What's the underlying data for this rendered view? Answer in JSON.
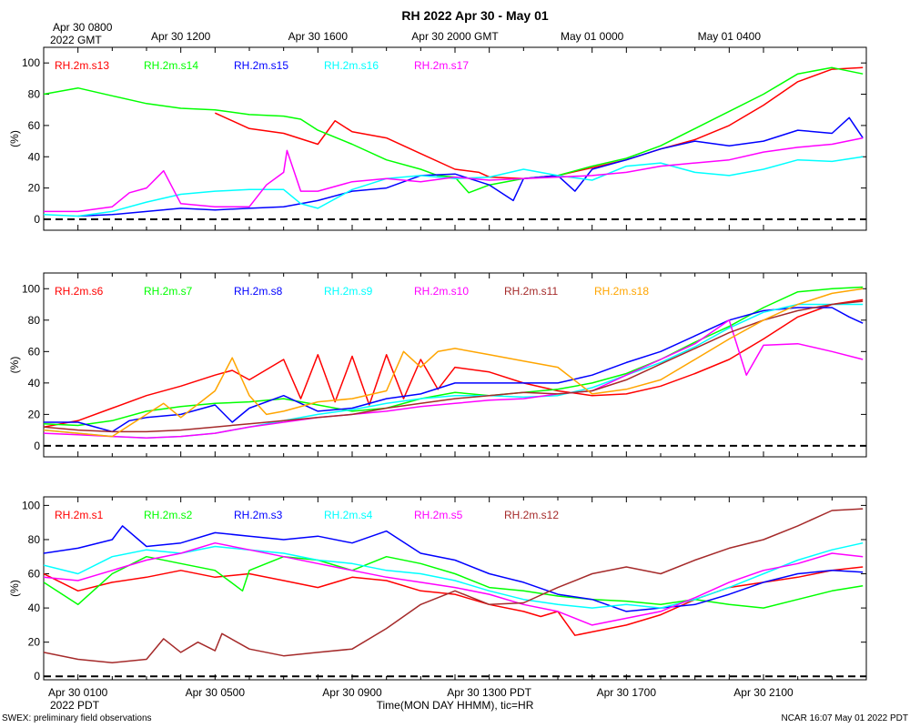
{
  "figure": {
    "title": "RH 2022 Apr 30 - May 01",
    "footer_left": "SWEX: preliminary field observations",
    "footer_right": "NCAR 16:07 May 01 2022 PDT",
    "top_axis_first_line1": "Apr 30 0800",
    "top_axis_first_line2": "2022 GMT",
    "bottom_axis_first_line2": "2022 PDT",
    "xlabel": "Time(MON DAY HHMM), tic=HR",
    "top_axis_ticks": [
      {
        "hour": 0,
        "label": ""
      },
      {
        "hour": 4,
        "label": "Apr 30 1200"
      },
      {
        "hour": 8,
        "label": "Apr 30 1600"
      },
      {
        "hour": 12,
        "label": "Apr 30 2000 GMT"
      },
      {
        "hour": 16,
        "label": "May 01 0000"
      },
      {
        "hour": 20,
        "label": "May 01 0400"
      }
    ],
    "bottom_axis_ticks": [
      {
        "hour": 1,
        "label": "Apr 30 0100"
      },
      {
        "hour": 5,
        "label": "Apr 30 0500"
      },
      {
        "hour": 9,
        "label": "Apr 30 0900"
      },
      {
        "hour": 13,
        "label": "Apr 30 1300 PDT"
      },
      {
        "hour": 17,
        "label": "Apr 30 1700"
      },
      {
        "hour": 21,
        "label": "Apr 30 2100"
      }
    ]
  },
  "chart_data": [
    {
      "type": "line",
      "name": "panel-top",
      "ylabel": "(%)",
      "ylim": [
        -7,
        110
      ],
      "yticks": [
        0,
        20,
        40,
        60,
        80,
        100
      ],
      "xlim": [
        0,
        24
      ],
      "reference_line": 0,
      "series": [
        {
          "name": "RH.2m.s13",
          "color": "#ff0000",
          "x": [
            5,
            6,
            7,
            8,
            8.5,
            9,
            10,
            11,
            12,
            12.7,
            13,
            14,
            15,
            16,
            17,
            18,
            19,
            20,
            21,
            22,
            23,
            23.9
          ],
          "y": [
            68,
            58,
            55,
            48,
            63,
            56,
            52,
            42,
            32,
            30,
            27,
            26,
            28,
            33,
            38,
            45,
            51,
            60,
            73,
            88,
            96,
            97
          ]
        },
        {
          "name": "RH.2m.s14",
          "color": "#00ff00",
          "x": [
            0,
            1,
            2,
            3,
            4,
            5,
            6,
            7,
            7.5,
            8,
            9,
            10,
            11,
            11.5,
            12,
            12.4,
            13,
            14,
            15,
            16,
            17,
            18,
            19,
            20,
            21,
            22,
            23,
            23.9
          ],
          "y": [
            80,
            84,
            79,
            74,
            71,
            70,
            67,
            66,
            64,
            57,
            48,
            38,
            32,
            28,
            27,
            17,
            22,
            26,
            28,
            34,
            39,
            47,
            58,
            69,
            80,
            93,
            97,
            93
          ]
        },
        {
          "name": "RH.2m.s15",
          "color": "#0000ff",
          "x": [
            1,
            2,
            3,
            4,
            5,
            6,
            7,
            8,
            9,
            10,
            11,
            12,
            13,
            13.7,
            14,
            15,
            15.5,
            16,
            17,
            18,
            19,
            20,
            21,
            22,
            23,
            23.5,
            23.9
          ],
          "y": [
            2,
            3,
            5,
            7,
            6,
            7,
            8,
            12,
            18,
            20,
            28,
            29,
            22,
            12,
            26,
            28,
            18,
            32,
            38,
            45,
            50,
            47,
            50,
            57,
            55,
            65,
            52
          ]
        },
        {
          "name": "RH.2m.s16",
          "color": "#00ffff",
          "x": [
            0,
            1,
            2,
            3,
            4,
            5,
            6,
            7,
            7.5,
            8,
            9,
            10,
            11,
            12,
            13,
            14,
            15,
            16,
            17,
            18,
            19,
            20,
            21,
            22,
            23,
            23.9
          ],
          "y": [
            3,
            2,
            5,
            11,
            16,
            18,
            19,
            19,
            10,
            7,
            19,
            26,
            28,
            26,
            27,
            32,
            28,
            25,
            34,
            36,
            30,
            28,
            32,
            38,
            37,
            40
          ]
        },
        {
          "name": "RH.2m.s17",
          "color": "#ff00ff",
          "x": [
            0,
            1,
            2,
            2.5,
            3,
            3.5,
            4,
            5,
            6,
            6.5,
            7,
            7.1,
            7.5,
            8,
            9,
            10,
            11,
            12,
            13,
            14,
            15,
            16,
            17,
            18,
            19,
            20,
            21,
            22,
            23,
            23.9
          ],
          "y": [
            5,
            5,
            8,
            17,
            20,
            31,
            10,
            8,
            8,
            22,
            30,
            44,
            18,
            18,
            24,
            26,
            24,
            27,
            25,
            26,
            27,
            28,
            30,
            34,
            36,
            38,
            43,
            46,
            48,
            52
          ]
        }
      ]
    },
    {
      "type": "line",
      "name": "panel-middle",
      "ylabel": "(%)",
      "ylim": [
        -7,
        110
      ],
      "yticks": [
        0,
        20,
        40,
        60,
        80,
        100
      ],
      "xlim": [
        0,
        24
      ],
      "reference_line": 0,
      "series": [
        {
          "name": "RH.2m.s6",
          "color": "#ff0000",
          "x": [
            0,
            1,
            2,
            3,
            4,
            5,
            5.5,
            6,
            7,
            7.5,
            8,
            8.5,
            9,
            9.5,
            10,
            10.5,
            11,
            11.5,
            12,
            13,
            14,
            15,
            16,
            17,
            18,
            19,
            20,
            21,
            22,
            23,
            23.9
          ],
          "y": [
            12,
            16,
            24,
            32,
            38,
            45,
            48,
            42,
            55,
            30,
            58,
            28,
            57,
            26,
            58,
            30,
            55,
            36,
            50,
            47,
            40,
            35,
            32,
            33,
            38,
            46,
            55,
            68,
            82,
            90,
            93
          ]
        },
        {
          "name": "RH.2m.s7",
          "color": "#00ff00",
          "x": [
            0,
            1,
            2,
            3,
            4,
            5,
            6,
            7,
            8,
            9,
            10,
            11,
            12,
            13,
            14,
            15,
            16,
            17,
            18,
            19,
            20,
            21,
            22,
            23,
            23.9
          ],
          "y": [
            14,
            13,
            16,
            22,
            25,
            27,
            28,
            30,
            26,
            22,
            24,
            30,
            34,
            32,
            34,
            36,
            40,
            46,
            55,
            66,
            76,
            88,
            98,
            100,
            101
          ]
        },
        {
          "name": "RH.2m.s8",
          "color": "#0000ff",
          "x": [
            0,
            1,
            2,
            2.5,
            3,
            4,
            5,
            5.5,
            6,
            7,
            8,
            9,
            10,
            11,
            12,
            13,
            14,
            15,
            16,
            17,
            18,
            19,
            20,
            21,
            22,
            23,
            23.5,
            23.9
          ],
          "y": [
            15,
            15,
            9,
            16,
            18,
            20,
            26,
            15,
            24,
            32,
            22,
            24,
            30,
            33,
            40,
            40,
            40,
            40,
            45,
            53,
            60,
            70,
            80,
            86,
            88,
            88,
            82,
            78
          ]
        },
        {
          "name": "RH.2m.s9",
          "color": "#00ffff",
          "x": [
            0,
            1,
            2,
            3,
            4,
            5,
            6,
            7,
            8,
            9,
            10,
            11,
            12,
            13,
            14,
            15,
            16,
            17,
            18,
            19,
            20,
            21,
            22,
            23,
            23.9
          ],
          "y": [
            10,
            8,
            6,
            5,
            6,
            8,
            12,
            16,
            20,
            23,
            27,
            30,
            32,
            32,
            31,
            32,
            37,
            45,
            53,
            63,
            75,
            85,
            90,
            90,
            90
          ]
        },
        {
          "name": "RH.2m.s10",
          "color": "#ff00ff",
          "x": [
            0,
            1,
            2,
            3,
            4,
            5,
            6,
            7,
            8,
            9,
            10,
            11,
            12,
            13,
            14,
            15,
            16,
            17,
            18,
            19,
            20,
            20.5,
            21,
            22,
            23,
            23.9
          ],
          "y": [
            8,
            7,
            6,
            5,
            6,
            8,
            12,
            15,
            18,
            20,
            22,
            25,
            27,
            29,
            30,
            33,
            35,
            45,
            55,
            65,
            80,
            45,
            64,
            65,
            60,
            55
          ]
        },
        {
          "name": "RH.2m.s11",
          "color": "#a52a2a",
          "x": [
            0,
            1,
            2,
            3,
            4,
            5,
            6,
            7,
            8,
            9,
            10,
            11,
            12,
            13,
            14,
            15,
            16,
            17,
            18,
            19,
            20,
            21,
            22,
            23,
            23.9
          ],
          "y": [
            12,
            10,
            9,
            9,
            10,
            12,
            14,
            16,
            18,
            20,
            24,
            27,
            30,
            32,
            34,
            33,
            35,
            42,
            52,
            62,
            72,
            80,
            86,
            90,
            92
          ]
        },
        {
          "name": "RH.2m.s18",
          "color": "#ffa500",
          "x": [
            0,
            1,
            2,
            3,
            3.5,
            4,
            5,
            5.5,
            6,
            6.5,
            7,
            8,
            9,
            10,
            10.5,
            11,
            11.5,
            12,
            13,
            14,
            15,
            16,
            17,
            18,
            19,
            20,
            21,
            22,
            23,
            23.9
          ],
          "y": [
            10,
            8,
            6,
            20,
            27,
            18,
            35,
            56,
            32,
            20,
            22,
            28,
            30,
            35,
            60,
            50,
            60,
            62,
            58,
            54,
            50,
            33,
            36,
            42,
            55,
            68,
            80,
            90,
            97,
            100
          ]
        }
      ]
    },
    {
      "type": "line",
      "name": "panel-bottom",
      "ylabel": "(%)",
      "ylim": [
        -2,
        105
      ],
      "yticks": [
        0,
        20,
        40,
        60,
        80,
        100
      ],
      "xlim": [
        0,
        24
      ],
      "reference_line": 0,
      "series": [
        {
          "name": "RH.2m.s1",
          "color": "#ff0000",
          "x": [
            0,
            1,
            2,
            3,
            4,
            5,
            6,
            7,
            8,
            9,
            10,
            11,
            12,
            13,
            14,
            14.5,
            15,
            15.5,
            16,
            17,
            18,
            19,
            20,
            21,
            22,
            23,
            23.9
          ],
          "y": [
            60,
            50,
            55,
            58,
            62,
            58,
            60,
            56,
            52,
            58,
            56,
            50,
            48,
            42,
            38,
            35,
            38,
            24,
            26,
            30,
            36,
            45,
            52,
            55,
            58,
            62,
            64
          ]
        },
        {
          "name": "RH.2m.s2",
          "color": "#00ff00",
          "x": [
            0,
            1,
            2,
            3,
            4,
            5,
            5.8,
            6,
            7,
            8,
            9,
            10,
            11,
            12,
            13,
            14,
            15,
            16,
            17,
            18,
            19,
            20,
            21,
            22,
            23,
            23.9
          ],
          "y": [
            55,
            42,
            60,
            70,
            66,
            62,
            50,
            62,
            70,
            68,
            62,
            70,
            66,
            60,
            52,
            50,
            47,
            45,
            44,
            42,
            45,
            42,
            40,
            45,
            50,
            53
          ]
        },
        {
          "name": "RH.2m.s3",
          "color": "#0000ff",
          "x": [
            0,
            1,
            2,
            2.3,
            3,
            4,
            5,
            6,
            7,
            8,
            9,
            10,
            11,
            12,
            13,
            14,
            15,
            16,
            17,
            18,
            19,
            20,
            21,
            22,
            23,
            23.9
          ],
          "y": [
            72,
            75,
            80,
            88,
            76,
            78,
            84,
            82,
            80,
            82,
            78,
            85,
            72,
            68,
            60,
            55,
            48,
            45,
            38,
            40,
            42,
            48,
            55,
            60,
            62,
            61
          ]
        },
        {
          "name": "RH.2m.s4",
          "color": "#00ffff",
          "x": [
            0,
            1,
            2,
            3,
            4,
            5,
            6,
            7,
            8,
            9,
            10,
            11,
            12,
            13,
            14,
            15,
            16,
            17,
            18,
            19,
            20,
            21,
            22,
            23,
            23.9
          ],
          "y": [
            65,
            60,
            70,
            74,
            72,
            76,
            74,
            72,
            68,
            66,
            62,
            60,
            56,
            50,
            45,
            42,
            40,
            42,
            40,
            45,
            52,
            60,
            68,
            74,
            78
          ]
        },
        {
          "name": "RH.2m.s5",
          "color": "#ff00ff",
          "x": [
            0,
            1,
            2,
            3,
            4,
            5,
            6,
            7,
            8,
            9,
            10,
            11,
            12,
            13,
            14,
            15,
            16,
            17,
            18,
            19,
            20,
            21,
            22,
            23,
            23.9
          ],
          "y": [
            58,
            56,
            62,
            68,
            72,
            78,
            74,
            70,
            66,
            62,
            58,
            55,
            52,
            48,
            42,
            38,
            30,
            34,
            38,
            46,
            55,
            62,
            66,
            72,
            70
          ]
        },
        {
          "name": "RH.2m.s12",
          "color": "#a52a2a",
          "x": [
            0,
            1,
            2,
            3,
            3.5,
            4,
            4.5,
            5,
            5.2,
            6,
            7,
            8,
            9,
            10,
            11,
            12,
            13,
            14,
            15,
            16,
            17,
            18,
            19,
            20,
            21,
            22,
            23,
            23.9
          ],
          "y": [
            14,
            10,
            8,
            10,
            22,
            14,
            20,
            15,
            25,
            16,
            12,
            14,
            16,
            28,
            42,
            50,
            42,
            43,
            52,
            60,
            64,
            60,
            68,
            75,
            80,
            88,
            97,
            98
          ]
        }
      ]
    }
  ]
}
